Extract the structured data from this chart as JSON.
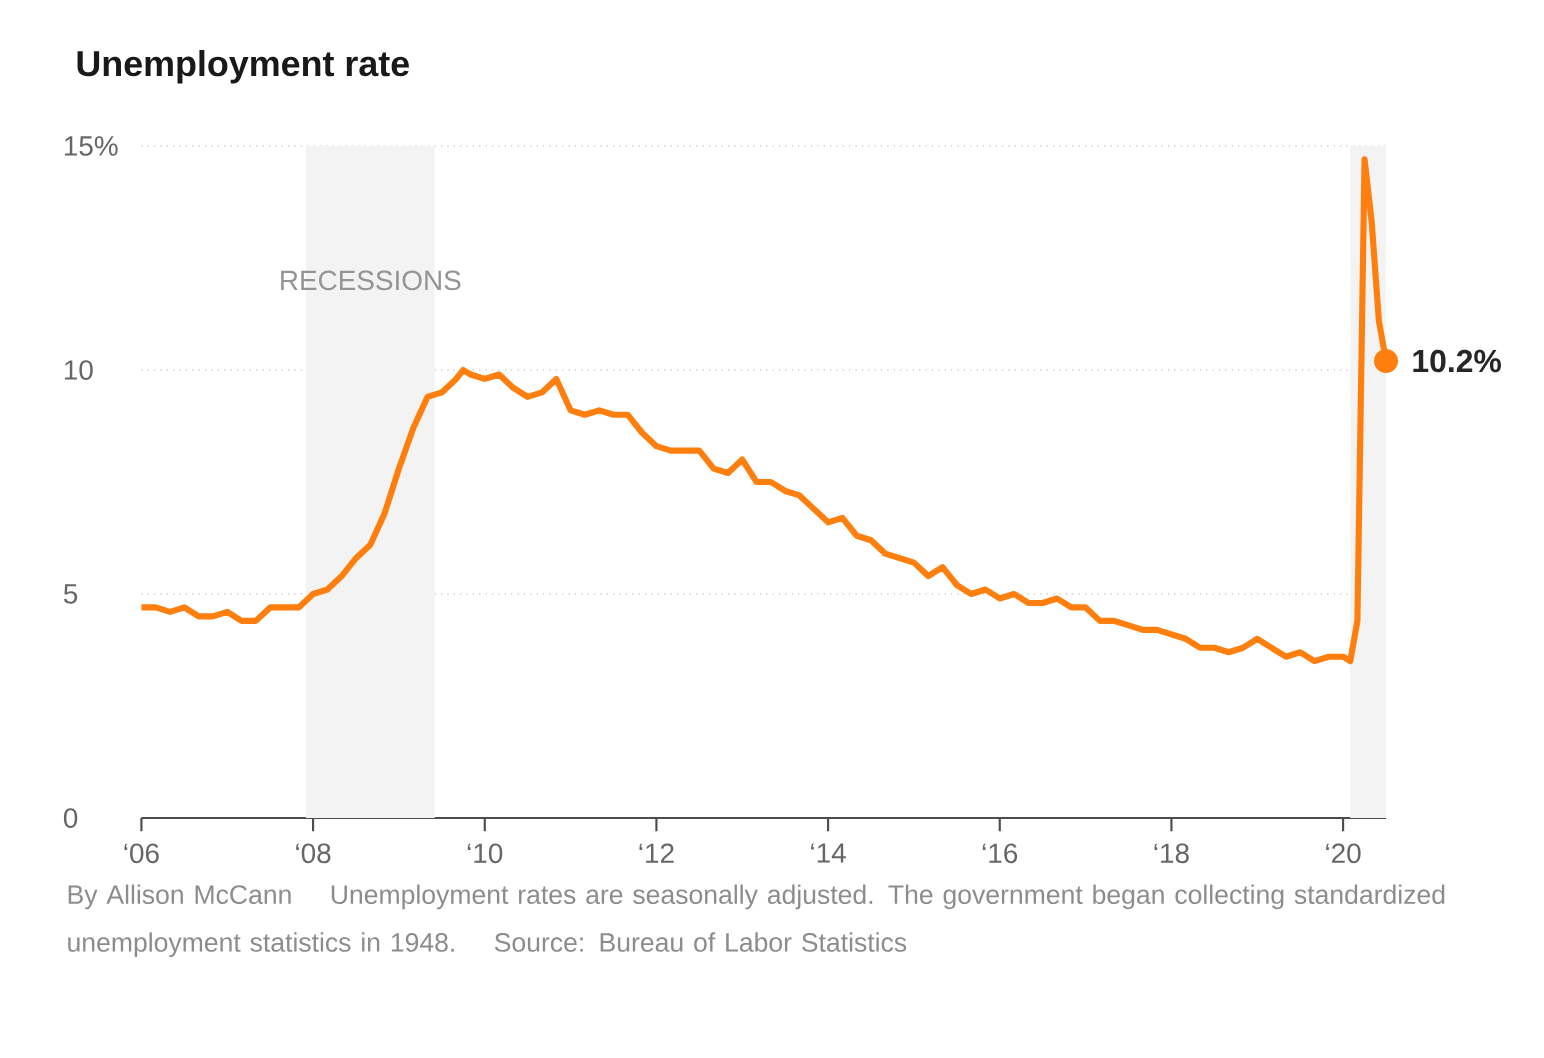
{
  "chart_data": {
    "type": "line",
    "title": "Unemployment rate",
    "x": [
      "2006-01",
      "2006-03",
      "2006-05",
      "2006-07",
      "2006-09",
      "2006-11",
      "2007-01",
      "2007-03",
      "2007-05",
      "2007-07",
      "2007-09",
      "2007-11",
      "2008-01",
      "2008-03",
      "2008-05",
      "2008-07",
      "2008-09",
      "2008-11",
      "2009-01",
      "2009-03",
      "2009-05",
      "2009-07",
      "2009-09",
      "2009-10",
      "2009-11",
      "2010-01",
      "2010-03",
      "2010-05",
      "2010-07",
      "2010-09",
      "2010-11",
      "2011-01",
      "2011-03",
      "2011-05",
      "2011-07",
      "2011-09",
      "2011-11",
      "2012-01",
      "2012-03",
      "2012-05",
      "2012-07",
      "2012-09",
      "2012-11",
      "2013-01",
      "2013-03",
      "2013-05",
      "2013-07",
      "2013-09",
      "2013-11",
      "2014-01",
      "2014-03",
      "2014-05",
      "2014-07",
      "2014-09",
      "2014-11",
      "2015-01",
      "2015-03",
      "2015-05",
      "2015-07",
      "2015-09",
      "2015-11",
      "2016-01",
      "2016-03",
      "2016-05",
      "2016-07",
      "2016-09",
      "2016-11",
      "2017-01",
      "2017-03",
      "2017-05",
      "2017-07",
      "2017-09",
      "2017-11",
      "2018-01",
      "2018-03",
      "2018-05",
      "2018-07",
      "2018-09",
      "2018-11",
      "2019-01",
      "2019-03",
      "2019-05",
      "2019-07",
      "2019-09",
      "2019-11",
      "2020-01",
      "2020-02",
      "2020-03",
      "2020-04",
      "2020-05",
      "2020-06",
      "2020-07"
    ],
    "series": [
      {
        "color": "#ff7f0e",
        "values": [
          4.7,
          4.7,
          4.6,
          4.7,
          4.5,
          4.5,
          4.6,
          4.4,
          4.4,
          4.7,
          4.7,
          4.7,
          5.0,
          5.1,
          5.4,
          5.8,
          6.1,
          6.8,
          7.8,
          8.7,
          9.4,
          9.5,
          9.8,
          10.0,
          9.9,
          9.8,
          9.9,
          9.6,
          9.4,
          9.5,
          9.8,
          9.1,
          9.0,
          9.1,
          9.0,
          9.0,
          8.6,
          8.3,
          8.2,
          8.2,
          8.2,
          7.8,
          7.7,
          8.0,
          7.5,
          7.5,
          7.3,
          7.2,
          6.9,
          6.6,
          6.7,
          6.3,
          6.2,
          5.9,
          5.8,
          5.7,
          5.4,
          5.6,
          5.2,
          5.0,
          5.1,
          4.9,
          5.0,
          4.8,
          4.8,
          4.9,
          4.7,
          4.7,
          4.4,
          4.4,
          4.3,
          4.2,
          4.2,
          4.1,
          4.0,
          3.8,
          3.8,
          3.7,
          3.8,
          4.0,
          3.8,
          3.6,
          3.7,
          3.5,
          3.6,
          3.6,
          3.5,
          4.4,
          14.7,
          13.3,
          11.1,
          10.2
        ]
      }
    ],
    "xlim": [
      "2006-01",
      "2020-07"
    ],
    "xticks": [
      {
        "value": "2006-01",
        "label": "‘06"
      },
      {
        "value": "2008-01",
        "label": "‘08"
      },
      {
        "value": "2010-01",
        "label": "‘10"
      },
      {
        "value": "2012-01",
        "label": "‘12"
      },
      {
        "value": "2014-01",
        "label": "‘14"
      },
      {
        "value": "2016-01",
        "label": "‘16"
      },
      {
        "value": "2018-01",
        "label": "‘18"
      },
      {
        "value": "2020-01",
        "label": "‘20"
      }
    ],
    "ylim": [
      0,
      15
    ],
    "yticks": [
      0,
      5,
      10,
      {
        "value": 15,
        "label": "15%"
      }
    ],
    "grid": "y",
    "bands": [
      {
        "axis": "x",
        "from": "2007-12",
        "to": "2009-06",
        "label": "RECESSIONS",
        "color": "#f3f3f3"
      },
      {
        "axis": "x",
        "from": "2020-02",
        "to": "2020-07",
        "color": "#f3f3f3"
      }
    ],
    "annotations": [
      {
        "text": "10.2%",
        "x": "2020-07",
        "y": 10.2
      },
      "By Allison McCann",
      "Unemployment rates are seasonally adjusted. The government began collecting standardized unemployment statistics in 1948.",
      "Source: Bureau of Labor Statistics"
    ]
  }
}
